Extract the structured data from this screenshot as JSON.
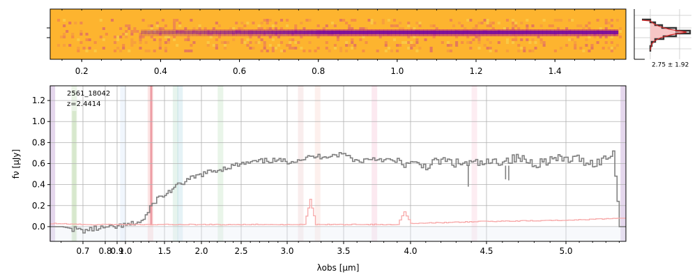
{
  "chart_data": [
    {
      "panel": "2d-spectrum",
      "type": "heatmap",
      "colormap": "plasma",
      "background_color": "#fdb42f",
      "trace_color": "#6a00a8",
      "x_ticks": [
        "0.2",
        "0.4",
        "0.6",
        "0.8",
        "1.0",
        "1.2",
        "1.4"
      ],
      "xlim": [
        0.12,
        1.58
      ],
      "trace_extent_x": [
        0.35,
        1.56
      ]
    },
    {
      "panel": "spatial-profile",
      "type": "line",
      "annotation": "2.75 ± 1.92",
      "fill_color": "#f7c6c6",
      "line_color": "#333333",
      "model_color": "#d62728"
    },
    {
      "panel": "1d-spectrum",
      "type": "line",
      "xlabel": "λobs [μm]",
      "ylabel": "fν [μJy]",
      "x_scale": "nonlinear (pixel-spaced)",
      "xlim": [
        0.55,
        5.45
      ],
      "ylim": [
        -0.14,
        1.34
      ],
      "x_ticks": [
        "0.7",
        "0.8",
        "0.9",
        "1.0",
        "1.5",
        "2.0",
        "2.5",
        "3.0",
        "3.5",
        "4.0",
        "4.5",
        "5.0"
      ],
      "y_ticks": [
        "0.0",
        "0.2",
        "0.4",
        "0.6",
        "0.8",
        "1.0",
        "1.2"
      ],
      "grid": true,
      "annotations": [
        "2561_18042",
        "z=2.4414"
      ],
      "series": [
        {
          "role": "flux",
          "color": "#808080",
          "x": [
            0.55,
            0.6,
            0.65,
            0.7,
            0.75,
            0.8,
            0.85,
            0.9,
            0.95,
            1.0,
            1.05,
            1.1,
            1.2,
            1.28,
            1.34,
            1.4,
            1.5,
            1.6,
            1.7,
            1.8,
            1.9,
            2.0,
            2.2,
            2.4,
            2.6,
            2.8,
            3.0,
            3.2,
            3.4,
            3.5,
            3.6,
            3.7,
            3.8,
            3.9,
            4.0,
            4.1,
            4.2,
            4.3,
            4.4,
            4.5,
            4.6,
            4.7,
            4.8,
            4.9,
            5.0,
            5.1,
            5.2,
            5.3,
            5.35,
            5.4
          ],
          "y": [
            0.0,
            0.0,
            -0.02,
            -0.04,
            -0.02,
            -0.01,
            -0.01,
            0.0,
            0.01,
            0.01,
            0.02,
            0.03,
            0.05,
            0.13,
            0.22,
            0.27,
            0.3,
            0.36,
            0.4,
            0.44,
            0.47,
            0.5,
            0.54,
            0.58,
            0.61,
            0.63,
            0.62,
            0.66,
            0.68,
            0.69,
            0.62,
            0.65,
            0.64,
            0.61,
            0.59,
            0.58,
            0.63,
            0.6,
            0.6,
            0.6,
            0.63,
            0.65,
            0.6,
            0.64,
            0.64,
            0.64,
            0.6,
            0.65,
            0.72,
            0.0
          ]
        },
        {
          "role": "error",
          "color": "#f7a8a8",
          "x": [
            0.55,
            0.7,
            1.0,
            1.3,
            1.5,
            2.0,
            2.5,
            3.0,
            3.15,
            3.2,
            3.25,
            3.5,
            3.9,
            3.95,
            4.0,
            4.5,
            5.0,
            5.4
          ],
          "y": [
            0.03,
            0.02,
            0.02,
            0.02,
            0.02,
            0.02,
            0.02,
            0.02,
            0.02,
            0.26,
            0.02,
            0.02,
            0.02,
            0.14,
            0.03,
            0.05,
            0.06,
            0.08
          ]
        }
      ],
      "line_marker_colors": [
        "#a070c0",
        "#b8d8a8",
        "#c8e0f8",
        "#f4a0a0",
        "#a8d8c0",
        "#a0d0e0",
        "#b0dcb0",
        "#e8c0c0",
        "#f8c8c0",
        "#f4b0c8",
        "#f8c0d0"
      ]
    }
  ]
}
